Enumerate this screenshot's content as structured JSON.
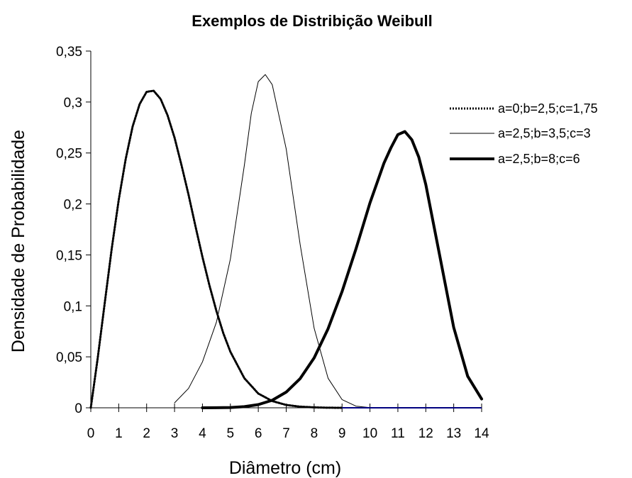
{
  "chart_data": {
    "type": "line",
    "title": "Exemplos de Distribição Weibull",
    "xlabel": "Diâmetro (cm)",
    "ylabel": "Densidade de Probabilidade",
    "xlim": [
      0,
      14
    ],
    "ylim": [
      0,
      0.35
    ],
    "x_ticks": [
      0,
      1,
      2,
      3,
      4,
      5,
      6,
      7,
      8,
      9,
      10,
      11,
      12,
      13,
      14
    ],
    "x_tick_labels": [
      "0",
      "1",
      "2",
      "3",
      "4",
      "5",
      "6",
      "7",
      "8",
      "9",
      "10",
      "11",
      "12",
      "13",
      "14"
    ],
    "y_ticks": [
      0,
      0.05,
      0.1,
      0.15,
      0.2,
      0.25,
      0.3,
      0.35
    ],
    "y_tick_labels": [
      "0",
      "0,05",
      "0,1",
      "0,15",
      "0,2",
      "0,25",
      "0,3",
      "0,35"
    ],
    "grid": false,
    "legend_position": "top-right",
    "series": [
      {
        "name": "a=0;b=2,5;c=1,75",
        "style": "dotted",
        "color": "#000000",
        "points": [
          [
            0,
            0
          ],
          [
            0.25,
            0.049
          ],
          [
            0.5,
            0.103
          ],
          [
            0.75,
            0.156
          ],
          [
            1,
            0.204
          ],
          [
            1.25,
            0.244
          ],
          [
            1.5,
            0.276
          ],
          [
            1.75,
            0.298
          ],
          [
            2,
            0.31
          ],
          [
            2.25,
            0.311
          ],
          [
            2.5,
            0.303
          ],
          [
            2.75,
            0.287
          ],
          [
            3,
            0.265
          ],
          [
            3.25,
            0.238
          ],
          [
            3.5,
            0.209
          ],
          [
            3.75,
            0.178
          ],
          [
            4,
            0.148
          ],
          [
            4.25,
            0.12
          ],
          [
            4.5,
            0.095
          ],
          [
            4.75,
            0.073
          ],
          [
            5,
            0.055
          ],
          [
            5.5,
            0.029
          ],
          [
            6,
            0.014
          ],
          [
            6.5,
            0.0066
          ],
          [
            7,
            0.0028
          ],
          [
            7.5,
            0.0011
          ],
          [
            8,
            0.0004
          ],
          [
            8.5,
            0.0001
          ],
          [
            9,
            0
          ]
        ]
      },
      {
        "name": "a=2,5;b=3,5;c=3",
        "style": "thin",
        "color": "#000000",
        "points": [
          [
            3,
            0.0049
          ],
          [
            3.5,
            0.019
          ],
          [
            4,
            0.045
          ],
          [
            4.5,
            0.084
          ],
          [
            5,
            0.146
          ],
          [
            5.5,
            0.238
          ],
          [
            5.75,
            0.289
          ],
          [
            6,
            0.32
          ],
          [
            6.25,
            0.327
          ],
          [
            6.5,
            0.317
          ],
          [
            7,
            0.254
          ],
          [
            7.5,
            0.16
          ],
          [
            8,
            0.078
          ],
          [
            8.5,
            0.029
          ],
          [
            9,
            0.0081
          ],
          [
            9.5,
            0.0016
          ],
          [
            10,
            0.0002
          ]
        ]
      },
      {
        "name": "a=2,5;b=8;c=6",
        "style": "thick",
        "color": "#000000",
        "points": [
          [
            4,
            0
          ],
          [
            4.5,
            5e-05
          ],
          [
            5,
            0.0003
          ],
          [
            5.5,
            0.0011
          ],
          [
            6,
            0.0031
          ],
          [
            6.5,
            0.0074
          ],
          [
            7,
            0.0154
          ],
          [
            7.5,
            0.0287
          ],
          [
            8,
            0.049
          ],
          [
            8.5,
            0.0775
          ],
          [
            9,
            0.114
          ],
          [
            9.5,
            0.156
          ],
          [
            10,
            0.201
          ],
          [
            10.5,
            0.24
          ],
          [
            10.75,
            0.255
          ],
          [
            11,
            0.268
          ],
          [
            11.25,
            0.271
          ],
          [
            11.5,
            0.263
          ],
          [
            11.75,
            0.246
          ],
          [
            12,
            0.219
          ],
          [
            12.5,
            0.149
          ],
          [
            13,
            0.079
          ],
          [
            13.5,
            0.031
          ],
          [
            14,
            0.0086
          ]
        ]
      }
    ],
    "tail_color": "#000080"
  }
}
